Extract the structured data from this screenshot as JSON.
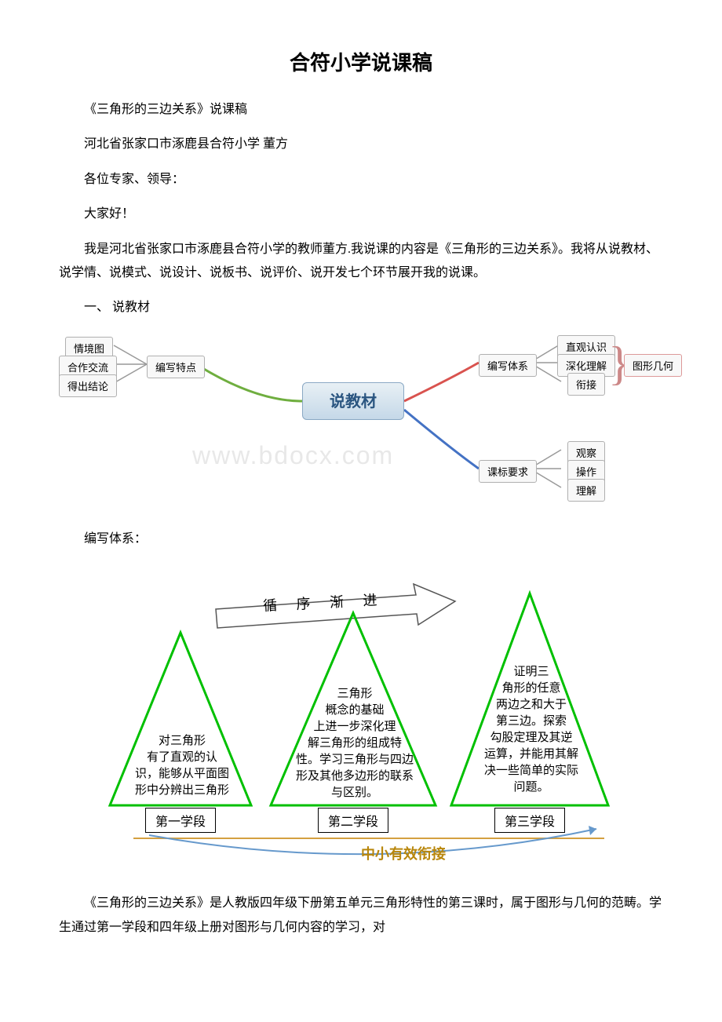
{
  "title": "合符小学说课稿",
  "p1": "《三角形的三边关系》说课稿",
  "p2": "河北省张家口市涿鹿县合符小学 董方",
  "p3": "各位专家、领导：",
  "p4": "大家好！",
  "p5": "我是河北省张家口市涿鹿县合符小学的教师董方.我说课的内容是《三角形的三边关系》。我将从说教材、说学情、说模式、说设计、说板书、说评价、说开发七个环节展开我的说课。",
  "p6": "一、 说教材",
  "diagram1": {
    "center": "说教材",
    "left_branch": {
      "label": "编写特点",
      "items": [
        "情境图",
        "合作交流",
        "得出结论"
      ]
    },
    "right_branch1": {
      "label": "编写体系",
      "items": [
        "直观认识",
        "深化理解",
        "衔接"
      ],
      "endcap": "图形几何"
    },
    "right_branch2": {
      "label": "课标要求",
      "items": [
        "观察",
        "操作",
        "理解"
      ]
    },
    "watermark": "www.bdocx.com",
    "colors": {
      "center_bg_top": "#e8f0f5",
      "center_bg_bot": "#c5d8e8",
      "center_border": "#8aa8c4",
      "center_text": "#2a5580",
      "left_line": "#6fae3f",
      "right1_line": "#d9534f",
      "right2_line": "#4472c4",
      "box_border": "#b0b0b0",
      "brace": "#cc8888"
    }
  },
  "p7": "编写体系：",
  "diagram2": {
    "arrow_label": "循 序 渐 进",
    "triangles": [
      {
        "stage": "第一学段",
        "text": "对三角形\n有了直观的认\n识，能够从平面图\n形中分辨出三角形"
      },
      {
        "stage": "第二学段",
        "text": "三角形\n概念的基础\n上进一步深化理\n解三角形的组成特\n性。学习三角形与四边\n形及其他多边形的联系\n与区别。"
      },
      {
        "stage": "第三学段",
        "text": "证明三\n角形的任意\n两边之和大于\n第三边。探索\n勾股定理及其逆\n运算，并能用其解\n决一些简单的实际\n问题。"
      }
    ],
    "bottom_label": "中小有效衔接",
    "colors": {
      "triangle_stroke": "#00c000",
      "arrow_stroke": "#555555",
      "hline": "#d4a040",
      "bottom_text": "#b8860b",
      "curve": "#6699cc"
    }
  },
  "p8": "《三角形的三边关系》是人教版四年级下册第五单元三角形特性的第三课时，属于图形与几何的范畴。学生通过第一学段和四年级上册对图形与几何内容的学习，对"
}
